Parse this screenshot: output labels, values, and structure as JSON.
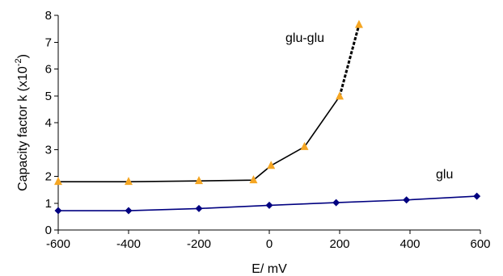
{
  "chart_data": {
    "type": "line",
    "title": "",
    "xlabel": "E/ mV",
    "ylabel_main": "Capacity factor k (x10",
    "ylabel_exp": "-2",
    "ylabel_close": ")",
    "xlim": [
      -600,
      600
    ],
    "ylim": [
      0,
      8
    ],
    "xticks": [
      -600,
      -400,
      -200,
      0,
      200,
      400,
      600
    ],
    "yticks": [
      0,
      1,
      2,
      3,
      4,
      5,
      6,
      7,
      8
    ],
    "grid": false,
    "series": [
      {
        "name": "glu-glu",
        "color": "#000000",
        "marker": "triangle",
        "marker_color": "#f5a623",
        "points": [
          {
            "x": -600,
            "y": 1.8
          },
          {
            "x": -400,
            "y": 1.8
          },
          {
            "x": -200,
            "y": 1.83
          },
          {
            "x": -45,
            "y": 1.86
          },
          {
            "x": 5,
            "y": 2.4
          },
          {
            "x": 100,
            "y": 3.1
          },
          {
            "x": 200,
            "y": 4.98
          },
          {
            "x": 255,
            "y": 7.65
          }
        ],
        "dashed_from_index": 6
      },
      {
        "name": "glu",
        "color": "#000080",
        "marker": "diamond",
        "marker_color": "#000080",
        "points": [
          {
            "x": -600,
            "y": 0.72
          },
          {
            "x": -400,
            "y": 0.72
          },
          {
            "x": -200,
            "y": 0.8
          },
          {
            "x": 0,
            "y": 0.92
          },
          {
            "x": 190,
            "y": 1.02
          },
          {
            "x": 390,
            "y": 1.12
          },
          {
            "x": 590,
            "y": 1.26
          }
        ]
      }
    ]
  }
}
